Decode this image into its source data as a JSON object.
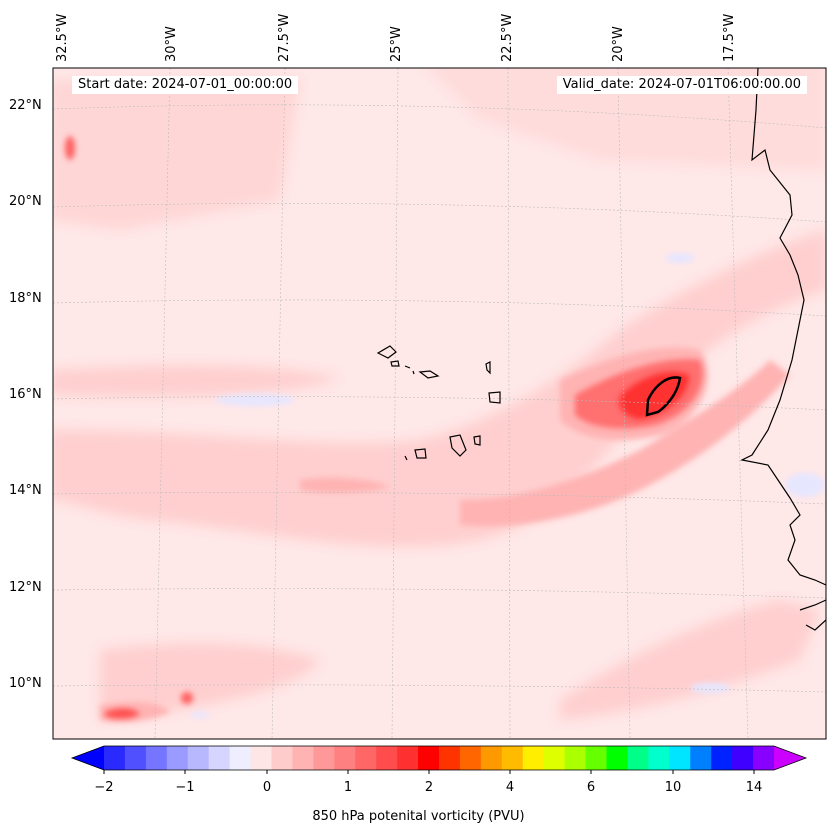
{
  "map": {
    "start_label": "Start date: 2024-07-01_00:00:00",
    "valid_label": "Valid_date: 2024-07-01T06:00:00.00",
    "lon_labels": [
      "32.5°W",
      "30°W",
      "27.5°W",
      "25°W",
      "22.5°W",
      "20°W",
      "17.5°W"
    ],
    "lat_labels": [
      "22°N",
      "20°N",
      "18°N",
      "16°N",
      "14°N",
      "12°N",
      "10°N"
    ],
    "variable": "850 hPa potential vorticity",
    "units": "PVU"
  },
  "colorbar": {
    "title": "850 hPa potenital vorticity (PVU)",
    "ticks": [
      "−2",
      "−1",
      "0",
      "1",
      "2",
      "4",
      "6",
      "10",
      "14"
    ],
    "colors": [
      "#0000ff",
      "#2a2aff",
      "#5050ff",
      "#7575ff",
      "#9a9aff",
      "#b8b8ff",
      "#d5d5ff",
      "#eeeeff",
      "#ffe6e6",
      "#ffcccc",
      "#ffb3b3",
      "#ff9999",
      "#ff8080",
      "#ff6666",
      "#ff4d4d",
      "#ff3030",
      "#ff0000",
      "#ff3300",
      "#ff6600",
      "#ff9900",
      "#ffbb00",
      "#ffee00",
      "#ddff00",
      "#aaff00",
      "#66ff00",
      "#00ff00",
      "#00ff88",
      "#00ffcc",
      "#00e5ff",
      "#0080ff",
      "#0022ff",
      "#4000ff",
      "#8800ff",
      "#cc00ff"
    ]
  }
}
